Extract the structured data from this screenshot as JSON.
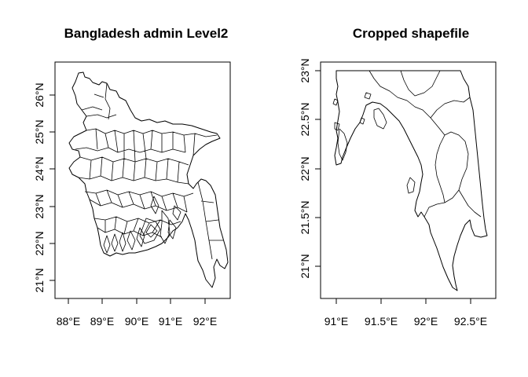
{
  "panels": [
    {
      "id": "left",
      "title": "Bangladesh admin Level2",
      "x_ticks": [
        "88°E",
        "89°E",
        "90°E",
        "91°E",
        "92°E"
      ],
      "y_ticks": [
        "21°N",
        "22°N",
        "23°N",
        "24°N",
        "25°N",
        "26°N"
      ]
    },
    {
      "id": "right",
      "title": "Cropped shapefile",
      "x_ticks": [
        "91°E",
        "91.5°E",
        "92°E",
        "92.5°E"
      ],
      "y_ticks": [
        "21°N",
        "21.5°N",
        "22°N",
        "22.5°N",
        "23°N"
      ]
    }
  ]
}
